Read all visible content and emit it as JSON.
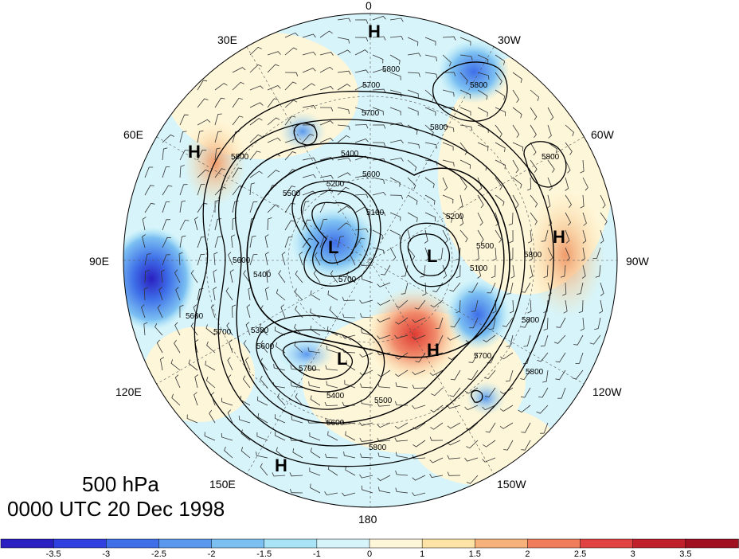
{
  "title_level": "500 hPa",
  "title_time": "0000 UTC 20 Dec 1998",
  "longitude_labels": [
    "0",
    "30W",
    "60W",
    "90W",
    "120W",
    "150W",
    "180",
    "150E",
    "120E",
    "90E",
    "60E",
    "30E"
  ],
  "pressure_systems": [
    {
      "type": "H",
      "lon": "~0"
    },
    {
      "type": "H",
      "lon": "~60E"
    },
    {
      "type": "L",
      "lon": "~80E"
    },
    {
      "type": "L",
      "lon": "~90W"
    },
    {
      "type": "H",
      "lon": "~90W"
    },
    {
      "type": "H",
      "lon": "~150W"
    },
    {
      "type": "L",
      "lon": "~150E"
    },
    {
      "type": "H",
      "lon": "~160E"
    }
  ],
  "contour_labels": [
    "5800",
    "5700",
    "5800",
    "5800",
    "5400",
    "5600",
    "5200",
    "5100",
    "5500",
    "5200",
    "5500",
    "5600",
    "5800",
    "5400",
    "5700",
    "5100",
    "5300",
    "5600",
    "5700",
    "5800",
    "5700",
    "5800",
    "5600",
    "5800",
    "5700",
    "5400",
    "5500",
    "5600",
    "5800",
    "5700",
    "5800"
  ],
  "colorbar": {
    "tick_labels": [
      "-3.5",
      "-3",
      "-2.5",
      "-2",
      "-1.5",
      "-1",
      "0",
      "1",
      "1.5",
      "2",
      "2.5",
      "3",
      "3.5"
    ],
    "colors": [
      "#2a1fc0",
      "#2f3fe0",
      "#3e6fe8",
      "#5a98ee",
      "#7cc0f2",
      "#a8e4f6",
      "#d6f4fa",
      "#fef6d8",
      "#fde3a6",
      "#f6b27a",
      "#ef7d5c",
      "#e14242",
      "#c0202a",
      "#a01020"
    ]
  }
}
